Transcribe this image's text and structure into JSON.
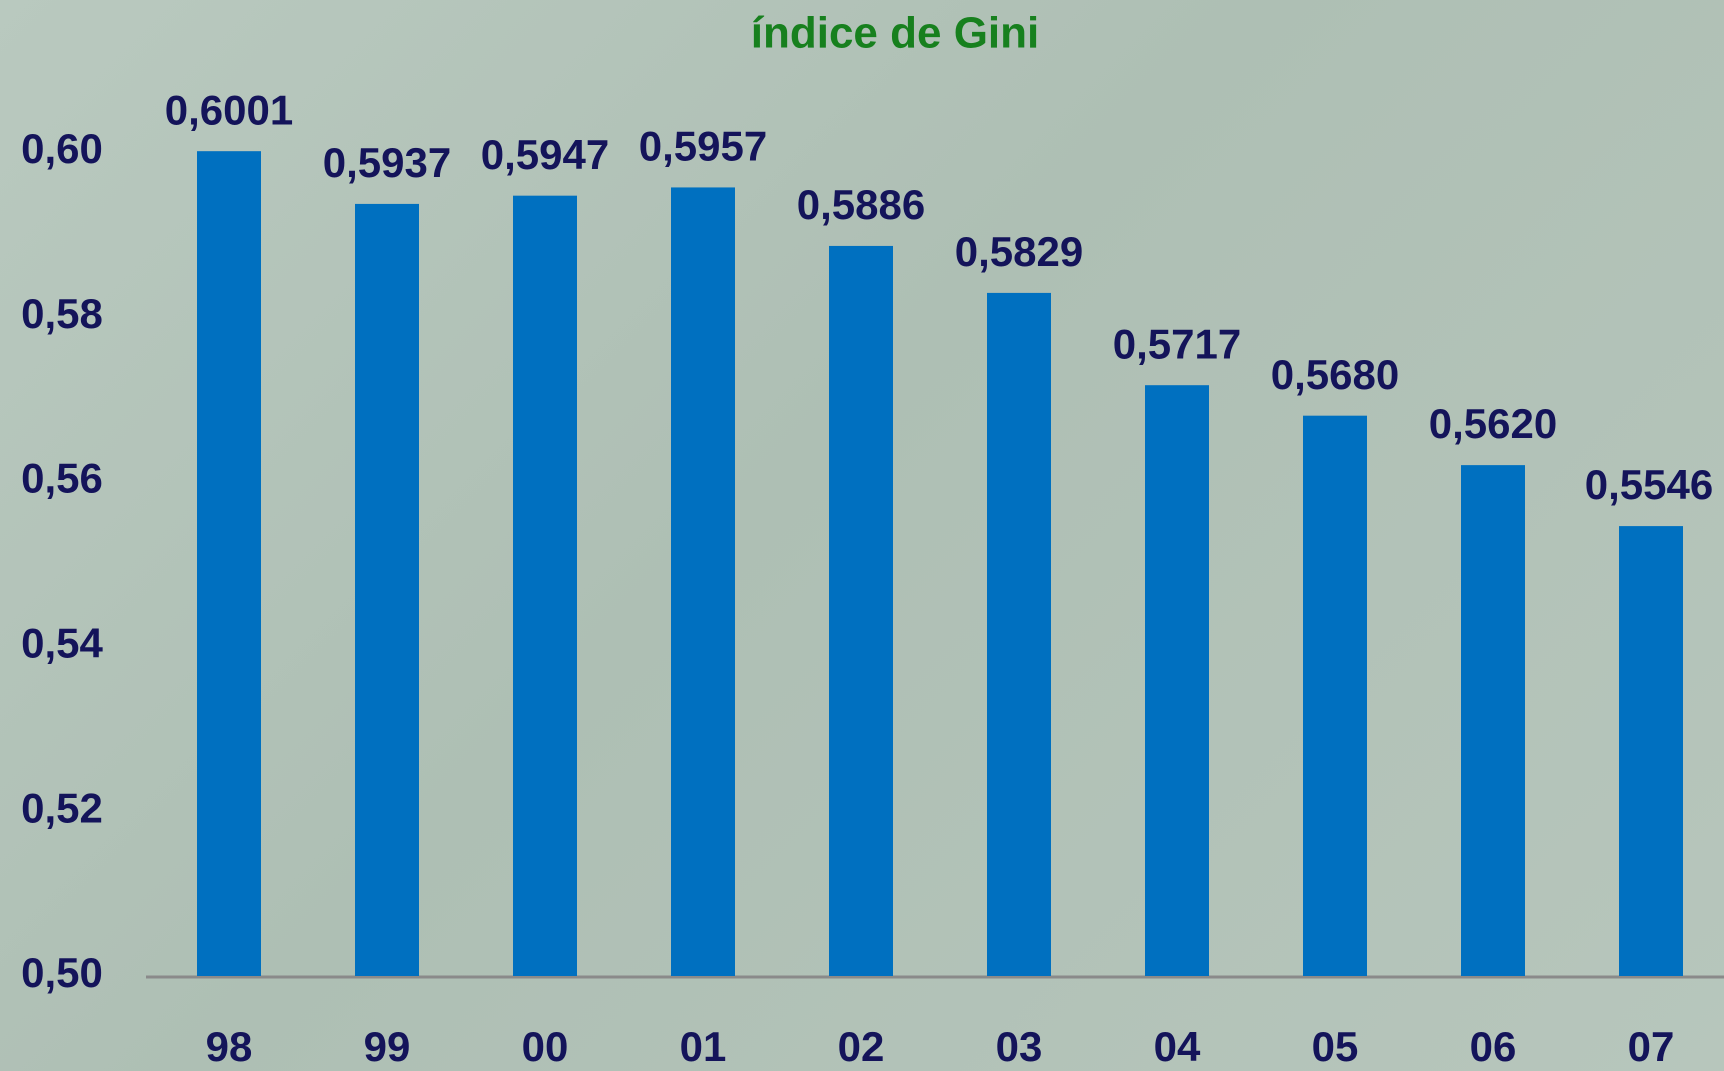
{
  "chart_data": {
    "type": "bar",
    "title": "índice de Gini",
    "categories": [
      "98",
      "99",
      "00",
      "01",
      "02",
      "03",
      "04",
      "05",
      "06",
      "07"
    ],
    "values": [
      0.6001,
      0.5937,
      0.5947,
      0.5957,
      0.5886,
      0.5829,
      0.5717,
      0.568,
      0.562,
      0.5546
    ],
    "value_labels": [
      "0,6001",
      "0,5937",
      "0,5947",
      "0,5957",
      "0,5886",
      "0,5829",
      "0,5717",
      "0,5680",
      "0,5620",
      "0,5546"
    ],
    "color": "#0070c0",
    "ylim": [
      0.5,
      0.6
    ],
    "yticks": [
      {
        "value": 0.5,
        "label": "0,50"
      },
      {
        "value": 0.52,
        "label": "0,52"
      },
      {
        "value": 0.54,
        "label": "0,54"
      },
      {
        "value": 0.56,
        "label": "0,56"
      },
      {
        "value": 0.58,
        "label": "0,58"
      },
      {
        "value": 0.6,
        "label": "0,60"
      }
    ],
    "grid": false
  }
}
